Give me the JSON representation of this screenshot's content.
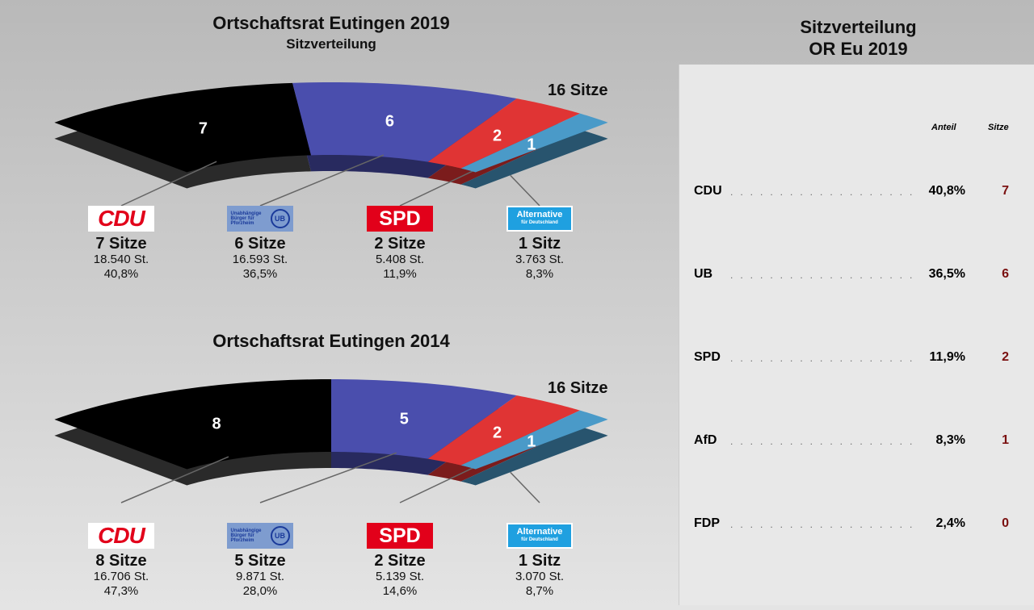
{
  "chart_data": [
    {
      "type": "pie",
      "title": "Ortschaftsrat Eutingen 2019",
      "subtitle": "Sitzverteilung",
      "total_label": "16 Sitze",
      "categories": [
        "CDU",
        "UB",
        "SPD",
        "AfD"
      ],
      "colors": [
        "#000000",
        "#4a4ead",
        "#e03434",
        "#4a9ac8"
      ],
      "seats": [
        7,
        6,
        2,
        1
      ],
      "seats_label": [
        "7 Sitze",
        "6 Sitze",
        "2 Sitze",
        "1 Sitz"
      ],
      "votes": [
        "18.540 St.",
        "16.593 St.",
        "5.408 St.",
        "3.763 St."
      ],
      "percent": [
        "40,8%",
        "36,5%",
        "11,9%",
        "8,3%"
      ]
    },
    {
      "type": "pie",
      "title": "Ortschaftsrat Eutingen 2014",
      "subtitle": "",
      "total_label": "16 Sitze",
      "categories": [
        "CDU",
        "UB",
        "SPD",
        "AfD"
      ],
      "colors": [
        "#000000",
        "#4a4ead",
        "#e03434",
        "#4a9ac8"
      ],
      "seats": [
        8,
        5,
        2,
        1
      ],
      "seats_label": [
        "8 Sitze",
        "5 Sitze",
        "2 Sitze",
        "1 Sitz"
      ],
      "votes": [
        "16.706 St.",
        "9.871 St.",
        "5.139 St.",
        "3.070 St."
      ],
      "percent": [
        "47,3%",
        "28,0%",
        "14,6%",
        "8,7%"
      ]
    }
  ],
  "logos": {
    "cdu": "CDU",
    "ub": "Unabhängige Bürger für Pforzheim",
    "ub_mark": "UB",
    "spd": "SPD",
    "afd": "Alternative",
    "afd_sub": "für Deutschland"
  },
  "panel": {
    "title1": "Sitzverteilung",
    "title2": "OR Eu 2019",
    "col_share": "Anteil",
    "col_seats": "Sitze",
    "rows": [
      {
        "party": "CDU",
        "share": "40,8%",
        "seats": "7"
      },
      {
        "party": "UB",
        "share": "36,5%",
        "seats": "6"
      },
      {
        "party": "SPD",
        "share": "11,9%",
        "seats": "2"
      },
      {
        "party": "AfD",
        "share": "8,3%",
        "seats": "1"
      },
      {
        "party": "FDP",
        "share": "2,4%",
        "seats": "0"
      }
    ]
  }
}
